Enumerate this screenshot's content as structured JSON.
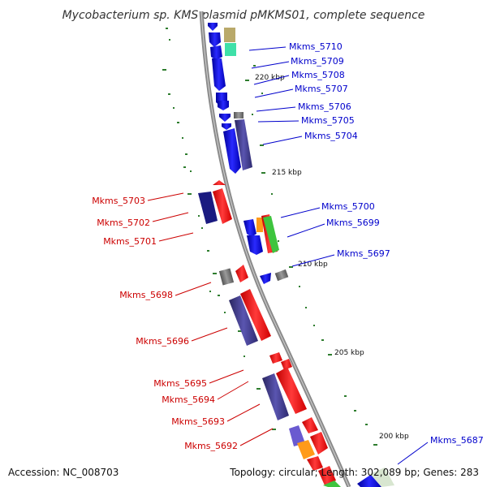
{
  "title": "Mycobacterium sp. KMS plasmid pMKMS01, complete sequence",
  "footer": {
    "accession": "Accession: NC_008703",
    "topology": "Topology: circular; Length: 302,089 bp; Genes: 283"
  },
  "colors": {
    "backbone": "#8a8a8a",
    "forward_label": "#0000cc",
    "reverse_label": "#cc0000",
    "tick": "#2e7d2e",
    "blue": "#1f1fff",
    "red": "#ff1a1a",
    "indigo": "#3f3a8a",
    "gray": "#7a7a7a",
    "green": "#3ec43e",
    "orange": "#ff9a1a",
    "tan": "#b9a96a",
    "mint": "#3fe0a8"
  },
  "scale_labels": [
    "220 kbp",
    "215 kbp",
    "210 kbp",
    "205 kbp",
    "200 kbp"
  ],
  "forward_gene_labels": [
    "Mkms_5710",
    "Mkms_5709",
    "Mkms_5708",
    "Mkms_5707",
    "Mkms_5706",
    "Mkms_5705",
    "Mkms_5704",
    "Mkms_5700",
    "Mkms_5699",
    "Mkms_5697",
    "Mkms_5687"
  ],
  "reverse_gene_labels": [
    "Mkms_5703",
    "Mkms_5702",
    "Mkms_5701",
    "Mkms_5698",
    "Mkms_5696",
    "Mkms_5695",
    "Mkms_5694",
    "Mkms_5693",
    "Mkms_5692"
  ]
}
